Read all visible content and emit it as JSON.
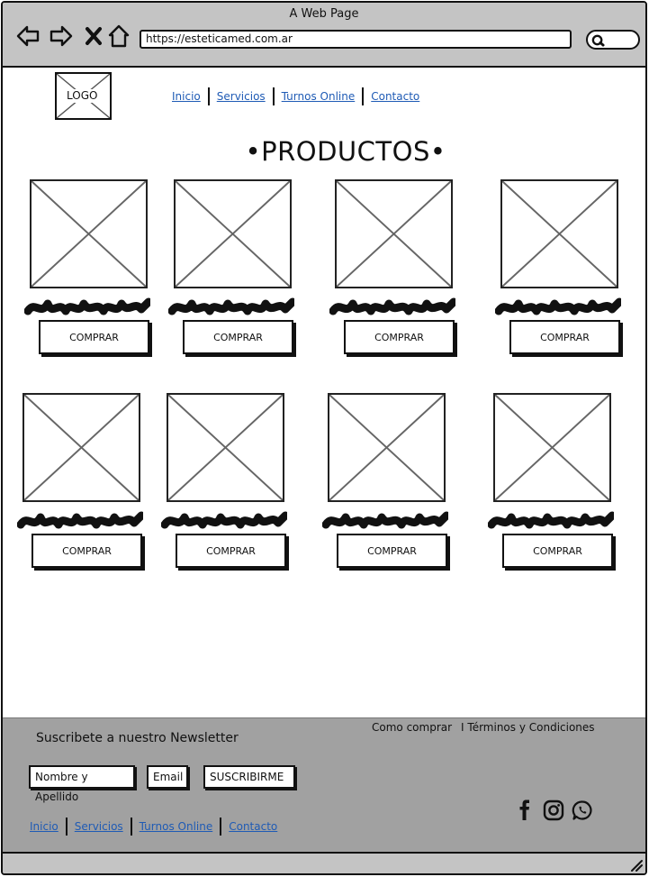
{
  "window": {
    "title": "A Web Page"
  },
  "browser": {
    "url": "https://esteticamed.com.ar"
  },
  "header": {
    "logo": "LOGO",
    "nav": [
      "Inicio",
      "Servicios",
      "Turnos Online",
      "Contacto"
    ]
  },
  "main": {
    "title": "•PRODUCTOS•",
    "buy_label": "COMPRAR"
  },
  "footer": {
    "newsletter_title": "Suscribete a nuestro Newsletter",
    "name_placeholder": "Nombre y Apellido",
    "email_placeholder": "Email",
    "subscribe_label": "SUSCRIBIRME",
    "how_to_buy": "Como comprar",
    "terms": "I Términos y Condiciones",
    "nav": [
      "Inicio",
      "Servicios",
      "Turnos Online",
      "Contacto"
    ],
    "social_icons": [
      "facebook-icon",
      "instagram-icon",
      "whatsapp-icon"
    ]
  },
  "colors": {
    "link": "#1f5bb5",
    "chrome": "#c4c4c4",
    "footer": "#a1a1a1"
  }
}
